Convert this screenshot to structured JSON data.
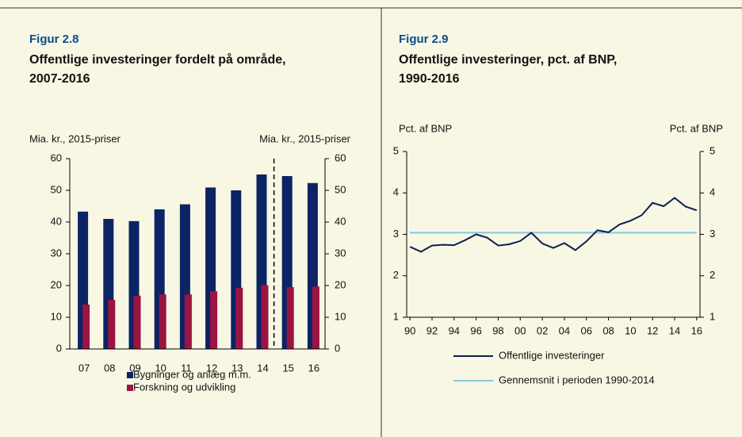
{
  "chart_data": [
    {
      "type": "bar",
      "figure_label": "Figur 2.8",
      "title": "Offentlige investeringer fordelt på område,",
      "title_line2": "2007-2016",
      "y_label": "Mia. kr., 2015-priser",
      "y2_label": "Mia. kr., 2015-priser",
      "categories": [
        "07",
        "08",
        "09",
        "10",
        "11",
        "12",
        "13",
        "14",
        "15",
        "16"
      ],
      "series": [
        {
          "name": "Bygninger og anlæg m.m.",
          "color": "#0c2365",
          "values": [
            43.3,
            41,
            40.3,
            44,
            45.6,
            50.9,
            50,
            55,
            54.5,
            52.3
          ]
        },
        {
          "name": "Forskning og udvikling",
          "color": "#9b1442",
          "values": [
            14,
            15.5,
            16.8,
            17.2,
            17.2,
            18.2,
            19.3,
            20.1,
            19.5,
            19.7
          ]
        }
      ],
      "ylim": [
        0,
        60
      ],
      "yticks": [
        0,
        10,
        20,
        30,
        40,
        50,
        60
      ],
      "y2lim": [
        0,
        60
      ],
      "y2ticks": [
        0,
        10,
        20,
        30,
        40,
        50,
        60
      ]
    },
    {
      "type": "line",
      "figure_label": "Figur 2.9",
      "title": "Offentlige investeringer, pct. af BNP,",
      "title_line2": "1990-2016",
      "y_label": "Pct. af BNP",
      "y2_label": "Pct. af BNP",
      "x": [
        1990,
        1991,
        1992,
        1993,
        1994,
        1995,
        1996,
        1997,
        1998,
        1999,
        2000,
        2001,
        2002,
        2003,
        2004,
        2005,
        2006,
        2007,
        2008,
        2009,
        2010,
        2011,
        2012,
        2013,
        2014,
        2015,
        2016
      ],
      "series": [
        {
          "name": "Offentlige investeringer",
          "color": "#0d1f4f",
          "values": [
            2.7,
            2.58,
            2.73,
            2.75,
            2.74,
            2.86,
            3.0,
            2.92,
            2.73,
            2.76,
            2.84,
            3.04,
            2.78,
            2.67,
            2.79,
            2.62,
            2.83,
            3.1,
            3.05,
            3.24,
            3.33,
            3.46,
            3.76,
            3.68,
            3.88,
            3.67,
            3.58
          ]
        },
        {
          "name": "Gennemsnit i perioden 1990-2014",
          "color": "#86c8e2",
          "values": [
            3.04,
            3.04,
            3.04,
            3.04,
            3.04,
            3.04,
            3.04,
            3.04,
            3.04,
            3.04,
            3.04,
            3.04,
            3.04,
            3.04,
            3.04,
            3.04,
            3.04,
            3.04,
            3.04,
            3.04,
            3.04,
            3.04,
            3.04,
            3.04,
            3.04,
            3.04,
            3.04
          ]
        }
      ],
      "xlim": [
        1989.7,
        2016.3
      ],
      "xticks": [
        {
          "value": 1990,
          "label": "90"
        },
        {
          "value": 1992,
          "label": "92"
        },
        {
          "value": 1994,
          "label": "94"
        },
        {
          "value": 1996,
          "label": "96"
        },
        {
          "value": 1998,
          "label": "98"
        },
        {
          "value": 2000,
          "label": "00"
        },
        {
          "value": 2002,
          "label": "02"
        },
        {
          "value": 2004,
          "label": "04"
        },
        {
          "value": 2006,
          "label": "06"
        },
        {
          "value": 2008,
          "label": "08"
        },
        {
          "value": 2010,
          "label": "10"
        },
        {
          "value": 2012,
          "label": "12"
        },
        {
          "value": 2014,
          "label": "14"
        },
        {
          "value": 2016,
          "label": "16"
        }
      ],
      "ylim": [
        1,
        5
      ],
      "yticks": [
        1,
        2,
        3,
        4,
        5
      ],
      "y2lim": [
        1,
        5
      ],
      "y2ticks": [
        1,
        2,
        3,
        4,
        5
      ]
    }
  ]
}
